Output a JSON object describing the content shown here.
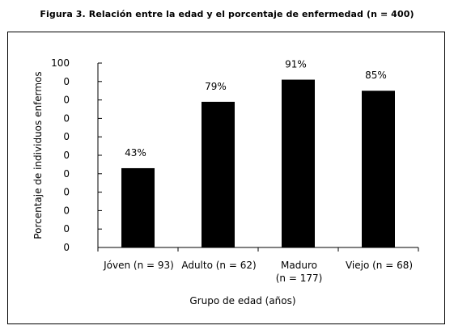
{
  "title": "Figura 3. Relación entre la edad y el porcentaje de enfermedad (n = 400)",
  "chart_data": {
    "type": "bar",
    "xlabel": "Grupo de edad (años)",
    "ylabel": "Porcentaje de individuos enfermos",
    "ylim": [
      0,
      100
    ],
    "y_tick_labels": [
      "0",
      "0",
      "0",
      "0",
      "0",
      "0",
      "0",
      "0",
      "0",
      "0",
      "100"
    ],
    "categories": [
      [
        "Jóven (n = 93)"
      ],
      [
        "Adulto (n = 62)"
      ],
      [
        "Maduro",
        "(n = 177)"
      ],
      [
        "Viejo (n = 68)"
      ]
    ],
    "values": [
      43,
      79,
      91,
      85
    ],
    "data_labels": [
      "43%",
      "79%",
      "91%",
      "85%"
    ],
    "bar_color": "#000000",
    "grid": false,
    "legend": "none"
  }
}
